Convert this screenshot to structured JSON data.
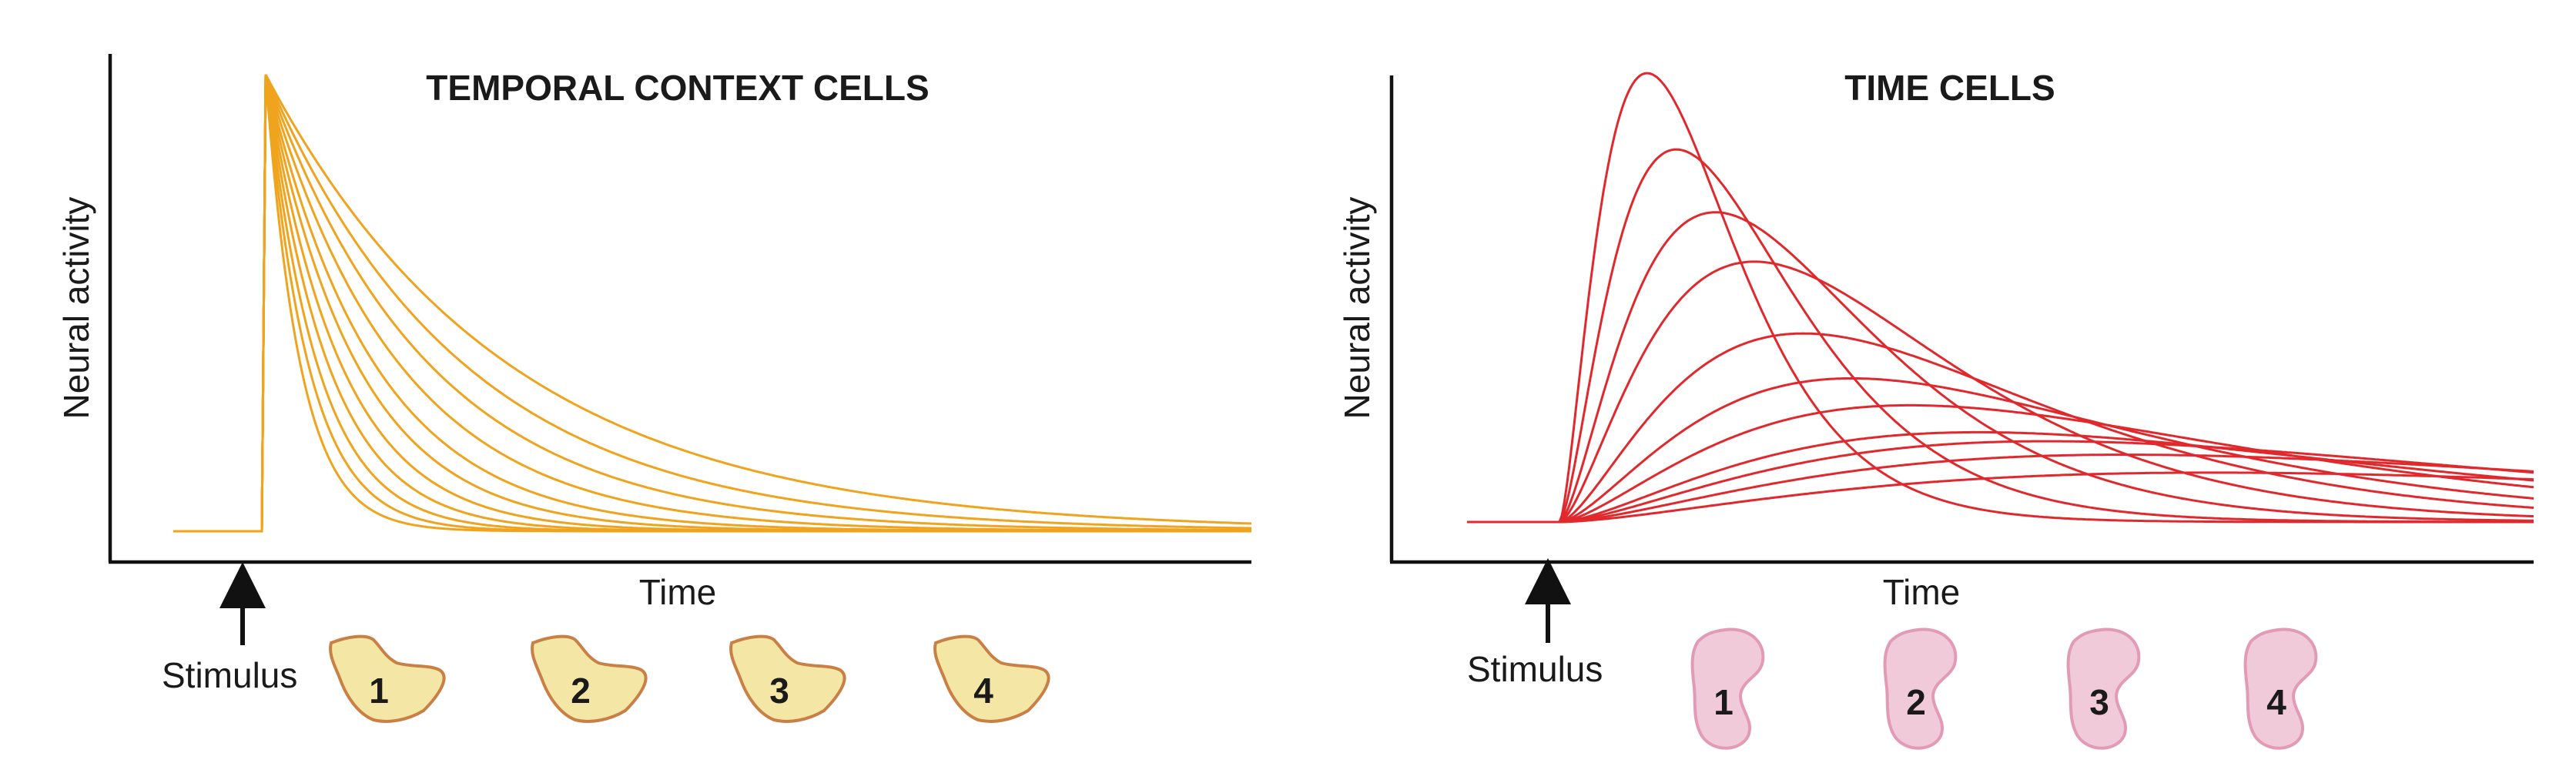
{
  "panels": [
    {
      "id": "temporal-context",
      "title": "TEMPORAL CONTEXT CELLS",
      "ylabel": "Neural activity",
      "xlabel": "Time",
      "stimulus_label": "Stimulus",
      "cells": [
        "1",
        "2",
        "3",
        "4"
      ],
      "colors": {
        "curve": "#f0a31c",
        "cell_fill": "#f4e7a6",
        "cell_stroke": "#c98046"
      }
    },
    {
      "id": "time-cells",
      "title": "TIME CELLS",
      "ylabel": "Neural activity",
      "xlabel": "Time",
      "stimulus_label": "Stimulus",
      "cells": [
        "1",
        "2",
        "3",
        "4"
      ],
      "colors": {
        "curve": "#e0282d",
        "cell_fill": "#f0cad8",
        "cell_stroke": "#e29bb4"
      }
    }
  ],
  "chart_data": [
    {
      "type": "line",
      "title": "TEMPORAL CONTEXT CELLS",
      "xlabel": "Time",
      "ylabel": "Neural activity",
      "annotation": "Stimulus",
      "curve_shape": "exponential decay after stimulus",
      "n_series": 11,
      "peak": 1.0,
      "baseline": 0.0,
      "decay_time_constants": [
        0.035,
        0.043,
        0.052,
        0.063,
        0.076,
        0.092,
        0.11,
        0.135,
        0.165,
        0.2,
        0.245
      ],
      "x_range": [
        0,
        1
      ]
    },
    {
      "type": "line",
      "title": "TIME CELLS",
      "xlabel": "Time",
      "ylabel": "Neural activity",
      "annotation": "Stimulus",
      "curve_shape": "rise then decay after stimulus, peak shifts later and lower",
      "n_series": 11,
      "baseline": 0.0,
      "peak_times": [
        0.09,
        0.12,
        0.16,
        0.2,
        0.25,
        0.3,
        0.36,
        0.43,
        0.5,
        0.58,
        0.67
      ],
      "peak_heights": [
        1.0,
        0.83,
        0.69,
        0.58,
        0.42,
        0.32,
        0.26,
        0.2,
        0.18,
        0.15,
        0.11
      ],
      "x_range": [
        0,
        1
      ]
    }
  ]
}
